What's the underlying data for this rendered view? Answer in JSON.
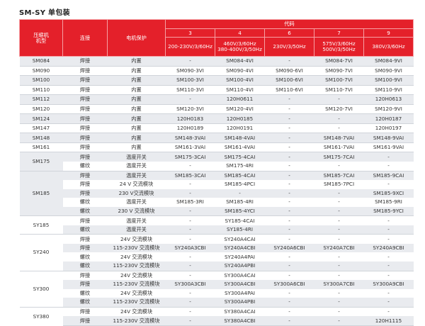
{
  "title": "SM-SY 单包装",
  "header": {
    "model": "压缩机\n机型",
    "connection": "连接",
    "protection": "电机保护",
    "code": "代码",
    "codes": [
      {
        "code": "3",
        "voltage": "200-230V/3/60Hz"
      },
      {
        "code": "4",
        "voltage": "460V/3/60Hz\n380-400V/3/50Hz"
      },
      {
        "code": "6",
        "voltage": "230V/3/50Hz"
      },
      {
        "code": "7",
        "voltage": "575V/3/60Hz\n500V/3/50Hz"
      },
      {
        "code": "9",
        "voltage": "380V/3/60Hz"
      }
    ]
  },
  "groups": [
    {
      "model": "SM084",
      "rows": [
        [
          "焊接",
          "内置",
          "-",
          "SM084-4VI",
          "-",
          "SM084-7VI",
          "SM084-9VI"
        ]
      ]
    },
    {
      "model": "SM090",
      "rows": [
        [
          "焊接",
          "内置",
          "SM090-3VI",
          "SM090-4VI",
          "SM090-6VI",
          "SM090-7VI",
          "SM090-9VI"
        ]
      ]
    },
    {
      "model": "SM100",
      "rows": [
        [
          "焊接",
          "内置",
          "SM100-3VI",
          "SM100-4VI",
          "SM100-6VI",
          "SM100-7VI",
          "SM100-9VI"
        ]
      ]
    },
    {
      "model": "SM110",
      "rows": [
        [
          "焊接",
          "内置",
          "SM110-3VI",
          "SM110-4VI",
          "SM110-6VI",
          "SM110-7VI",
          "SM110-9VI"
        ]
      ]
    },
    {
      "model": "SM112",
      "rows": [
        [
          "焊接",
          "内置",
          "-",
          "120H0611",
          "-",
          "-",
          "120H0613"
        ]
      ]
    },
    {
      "model": "SM120",
      "rows": [
        [
          "焊接",
          "内置",
          "SM120-3VI",
          "SM120-4VI",
          "-",
          "SM120-7VI",
          "SM120-9VI"
        ]
      ]
    },
    {
      "model": "SM124",
      "rows": [
        [
          "焊接",
          "内置",
          "120H0183",
          "120H0185",
          "-",
          "-",
          "120H0187"
        ]
      ]
    },
    {
      "model": "SM147",
      "rows": [
        [
          "焊接",
          "内置",
          "120H0189",
          "120H0191",
          "-",
          "-",
          "120H0197"
        ]
      ]
    },
    {
      "model": "SM148",
      "rows": [
        [
          "焊接",
          "内置",
          "SM148-3VAI",
          "SM148-4VAI",
          "-",
          "SM148-7VAI",
          "SM148-9VAI"
        ]
      ]
    },
    {
      "model": "SM161",
      "rows": [
        [
          "焊接",
          "内置",
          "SM161-3VAI",
          "SM161-4VAI",
          "-",
          "SM161-7VAI",
          "SM161-9VAI"
        ]
      ]
    },
    {
      "model": "SM175",
      "rows": [
        [
          "焊接",
          "温度开关",
          "SM175-3CAI",
          "SM175-4CAI",
          "-",
          "SM175-7CAI",
          "-"
        ],
        [
          "螺纹",
          "温度开关",
          "-",
          "SM175-4RI",
          "-",
          "-",
          "-"
        ]
      ]
    },
    {
      "model": "SM185",
      "rows": [
        [
          "焊接",
          "温度开关",
          "SM185-3CAI",
          "SM185-4CAI",
          "-",
          "SM185-7CAI",
          "SM185-9CAI"
        ],
        [
          "焊接",
          "24 V 交流模块",
          "-",
          "SM185-4PCI",
          "-",
          "SM185-7PCI",
          "-"
        ],
        [
          "焊接",
          "230 V交流模块",
          "-",
          "-",
          "-",
          "-",
          "SM185-9XCI"
        ],
        [
          "螺纹",
          "温度开关",
          "SM185-3RI",
          "SM185-4RI",
          "-",
          "-",
          "SM185-9RI"
        ],
        [
          "螺纹",
          "230 V 交流模块",
          "-",
          "SM185-4YCI",
          "-",
          "-",
          "SM185-9YCI"
        ]
      ]
    },
    {
      "model": "SY185",
      "rows": [
        [
          "焊接",
          "温度开关",
          "-",
          "SY185-4CAI",
          "-",
          "-",
          "-"
        ],
        [
          "螺纹",
          "温度开关",
          "-",
          "SY185-4RI",
          "-",
          "-",
          "-"
        ]
      ]
    },
    {
      "model": "SY240",
      "rows": [
        [
          "焊接",
          "24V 交流模块",
          "-",
          "SY240A4CAI",
          "-",
          "-",
          "-"
        ],
        [
          "焊接",
          "115-230V 交流模块",
          "SY240A3CBI",
          "SY240A4CBI",
          "SY240A6CBI",
          "SY240A7CBI",
          "SY240A9CBI"
        ],
        [
          "螺纹",
          "24V 交流模块",
          "-",
          "SY240A4PAI",
          "-",
          "-",
          "-"
        ],
        [
          "螺纹",
          "115-230V 交流模块",
          "-",
          "SY240A4PBI",
          "-",
          "-",
          "-"
        ]
      ]
    },
    {
      "model": "SY300",
      "rows": [
        [
          "焊接",
          "24V 交流模块",
          "-",
          "SY300A4CAI",
          "-",
          "-",
          "-"
        ],
        [
          "焊接",
          "115-230V 交流模块",
          "SY300A3CBI",
          "SY300A4CBI",
          "SY300A6CBI",
          "SY300A7CBI",
          "SY300A9CBI"
        ],
        [
          "螺纹",
          "24V 交流模块",
          "-",
          "SY300A4PAI",
          "-",
          "-",
          "-"
        ],
        [
          "螺纹",
          "115-230V 交流模块",
          "-",
          "SY300A4PBI",
          "-",
          "-",
          "-"
        ]
      ]
    },
    {
      "model": "SY380",
      "rows": [
        [
          "焊接",
          "24V 交流模块",
          "-",
          "SY380A4CAI",
          "-",
          "-",
          "-"
        ],
        [
          "焊接",
          "115-230V 交流模块",
          "-",
          "SY380A4CBI",
          "-",
          "-",
          "120H1115"
        ]
      ]
    }
  ]
}
